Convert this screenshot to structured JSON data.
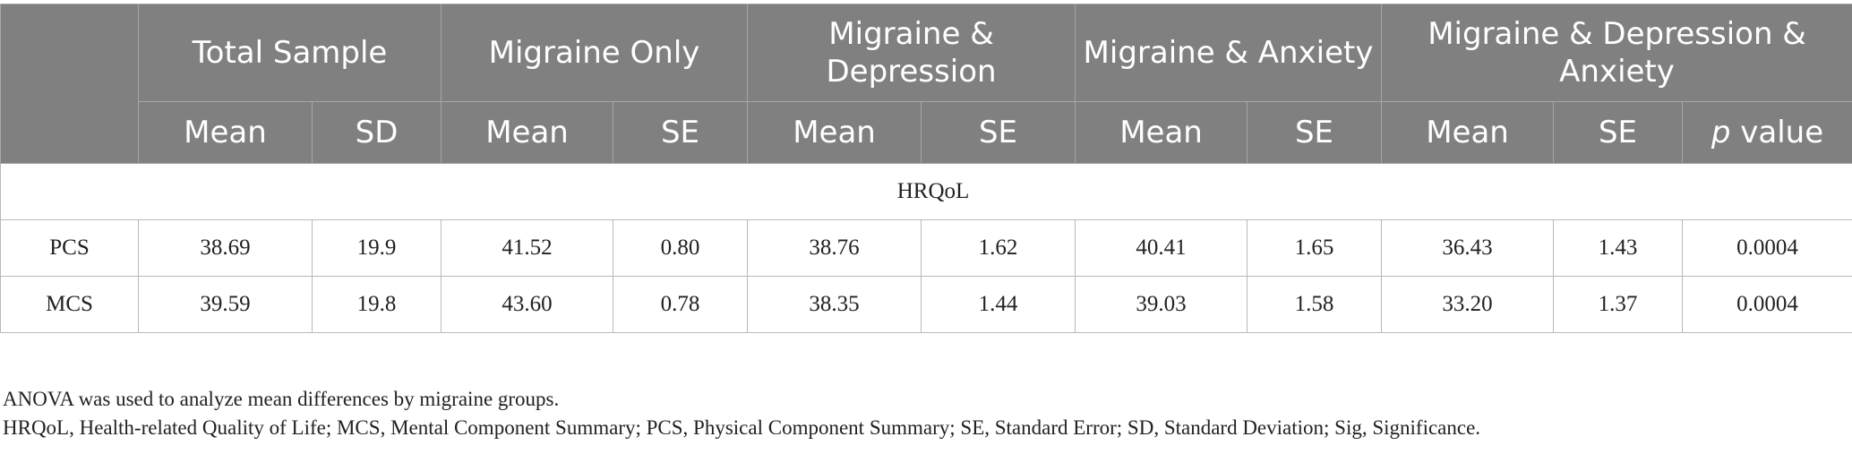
{
  "table": {
    "group_headers": [
      "Total Sample",
      "Migraine Only",
      "Migraine & Depression",
      "Migraine & Anxiety",
      "Migraine & Depression & Anxiety"
    ],
    "sub_headers": {
      "mean": "Mean",
      "sd": "SD",
      "se": "SE",
      "p_italic": "p",
      "p_value": " value"
    },
    "section_label": "HRQoL",
    "rows": [
      {
        "label": "PCS",
        "values": [
          "38.69",
          "19.9",
          "41.52",
          "0.80",
          "38.76",
          "1.62",
          "40.41",
          "1.65",
          "36.43",
          "1.43",
          "0.0004"
        ]
      },
      {
        "label": "MCS",
        "values": [
          "39.59",
          "19.8",
          "43.60",
          "0.78",
          "38.35",
          "1.44",
          "39.03",
          "1.58",
          "33.20",
          "1.37",
          "0.0004"
        ]
      }
    ]
  },
  "notes": {
    "line1": "ANOVA was used to analyze mean differences by migraine groups.",
    "line2": "HRQoL, Health-related Quality of Life; MCS, Mental Component Summary; PCS, Physical Component Summary; SE, Standard Error; SD, Standard Deviation; Sig, Significance."
  }
}
